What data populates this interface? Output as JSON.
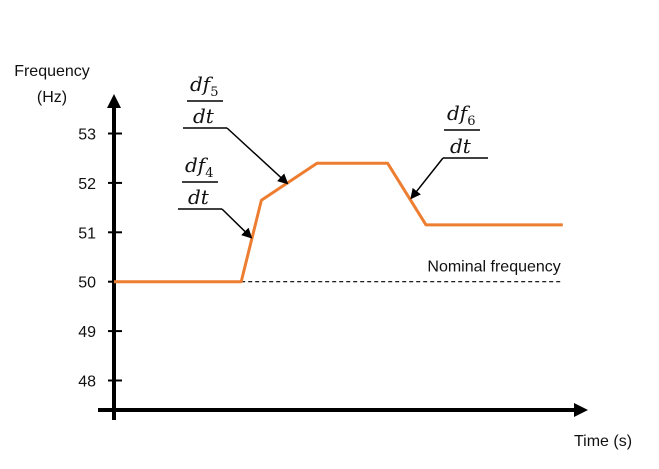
{
  "chart_data": {
    "type": "line",
    "ylabel_line1": "Frequency",
    "ylabel_line2": "(Hz)",
    "xlabel": "Time (s)",
    "ylim": [
      47.2,
      53.8
    ],
    "yticks": [
      48,
      49,
      50,
      51,
      52,
      53
    ],
    "grid": false,
    "series": [
      {
        "color": "#ED7D31",
        "points": [
          {
            "x": 0.0,
            "y": 50.0
          },
          {
            "x": 0.265,
            "y": 50.0
          },
          {
            "x": 0.307,
            "y": 51.65
          },
          {
            "x": 0.423,
            "y": 52.4
          },
          {
            "x": 0.57,
            "y": 52.4
          },
          {
            "x": 0.65,
            "y": 51.15
          },
          {
            "x": 0.935,
            "y": 51.15
          }
        ]
      }
    ],
    "reference_line": {
      "label": "Nominal frequency",
      "y": 50.0,
      "x_start": 0.265,
      "x_end": 0.935,
      "style": "dashed"
    },
    "annotations": [
      {
        "id": "df4",
        "numerator": "df",
        "subscript": "4",
        "denominator": "dt",
        "target": {
          "x": 0.285,
          "y": 50.9
        }
      },
      {
        "id": "df5",
        "numerator": "df",
        "subscript": "5",
        "denominator": "dt",
        "target": {
          "x": 0.36,
          "y": 52.0
        }
      },
      {
        "id": "df6",
        "numerator": "df",
        "subscript": "6",
        "denominator": "dt",
        "target": {
          "x": 0.62,
          "y": 51.7
        }
      }
    ]
  }
}
